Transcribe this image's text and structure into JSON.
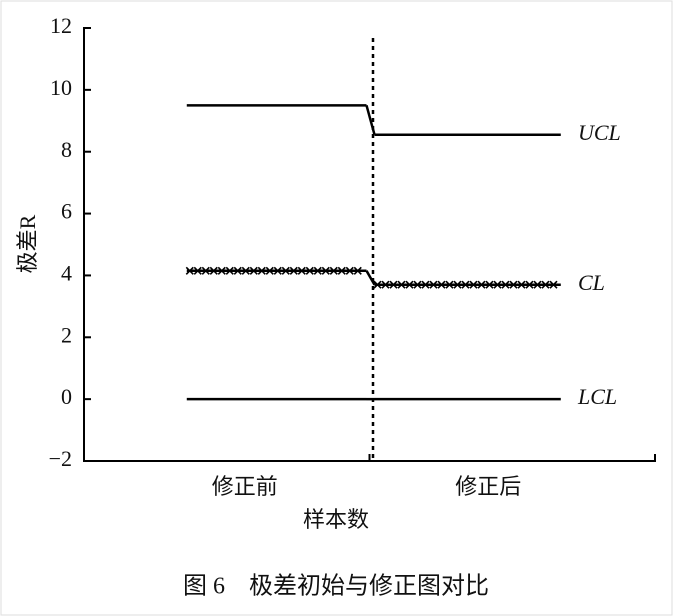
{
  "chart_data": {
    "type": "line",
    "caption": "图 6　极差初始与修正图对比",
    "x_label": "样本数",
    "y_label": "极差R",
    "categories": [
      "修正前",
      "修正后"
    ],
    "series": [
      {
        "name": "UCL",
        "color": "#000000",
        "values": [
          9.5,
          8.55
        ]
      },
      {
        "name": "CL",
        "color": "#000000",
        "marker": "x",
        "values": [
          4.15,
          3.7
        ]
      },
      {
        "name": "LCL",
        "color": "#000000",
        "values": [
          0,
          0
        ]
      }
    ],
    "ylim": [
      -2,
      12
    ],
    "yticks": [
      {
        "value": -2,
        "label": "−2"
      },
      0,
      2,
      4,
      6,
      8,
      10,
      12
    ],
    "grid": false
  }
}
